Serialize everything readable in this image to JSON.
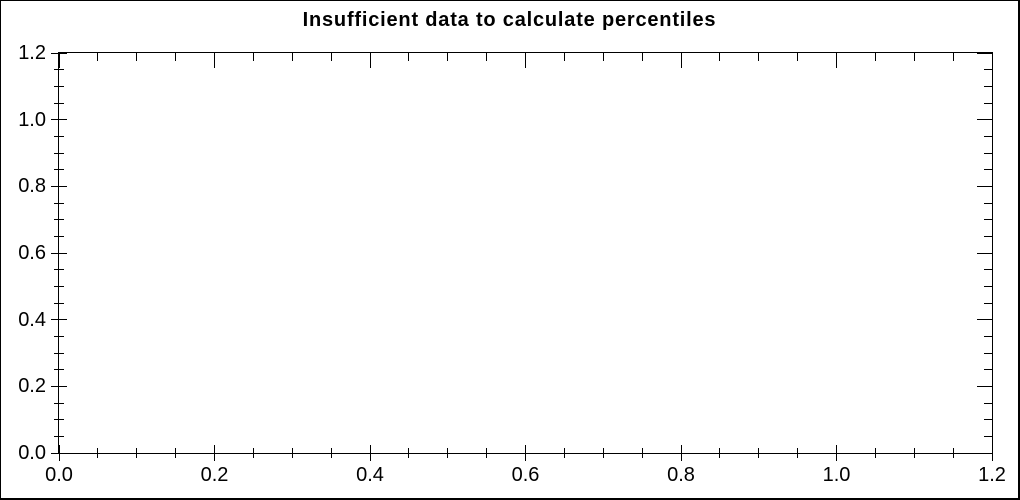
{
  "title": "Insufficient data to calculate percentiles",
  "colors": {
    "background": "#ffffff",
    "axis": "#000000",
    "text": "#000000"
  },
  "chart_data": {
    "type": "scatter",
    "title": "Insufficient data to calculate percentiles",
    "series": [],
    "xlim": [
      0.0,
      1.2
    ],
    "ylim": [
      0.0,
      1.2
    ],
    "x_major_step": 0.2,
    "x_minor_step": 0.05,
    "y_major_step": 0.2,
    "y_minor_step": 0.05,
    "x_tick_labels": [
      "0.0",
      "0.2",
      "0.4",
      "0.6",
      "0.8",
      "1.0",
      "1.2"
    ],
    "y_tick_labels": [
      "0.0",
      "0.2",
      "0.4",
      "0.6",
      "0.8",
      "1.0",
      "1.2"
    ],
    "grid": false,
    "legend": "none",
    "plot_background": "#ffffff"
  }
}
